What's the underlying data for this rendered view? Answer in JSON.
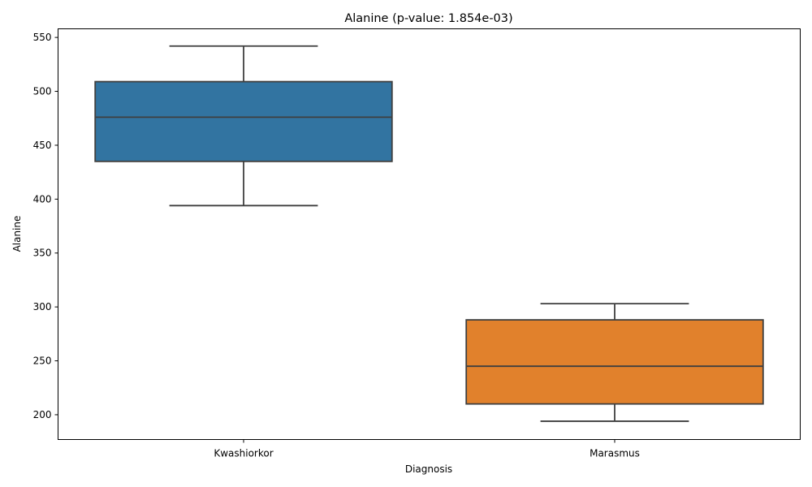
{
  "chart_data": {
    "type": "box",
    "title": "Alanine  (p-value: 1.854e-03)",
    "xlabel": "Diagnosis",
    "ylabel": "Alanine",
    "ylim": [
      177,
      558
    ],
    "yticks": [
      200,
      250,
      300,
      350,
      400,
      450,
      500,
      550
    ],
    "categories": [
      "Kwashiorkor",
      "Marasmus"
    ],
    "grid": false,
    "colors": {
      "Kwashiorkor": "#3274a1",
      "Marasmus": "#e1812c",
      "line": "#3f3f3f"
    },
    "boxes": [
      {
        "category": "Kwashiorkor",
        "whisker_low": 394,
        "q1": 435,
        "median": 476,
        "q3": 509,
        "whisker_high": 542
      },
      {
        "category": "Marasmus",
        "whisker_low": 194,
        "q1": 210,
        "median": 245,
        "q3": 288,
        "whisker_high": 303
      }
    ]
  }
}
